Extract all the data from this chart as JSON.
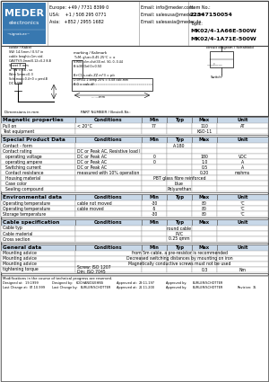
{
  "bg_color": "#ffffff",
  "header": {
    "company": "MEDER",
    "subtitle": "electronics",
    "contact_europe": "Europe: +49 / 7731 8399 0",
    "contact_usa": "USA:    +1 / 508 295 0771",
    "contact_asia": "Asia:   +852 / 2955 1682",
    "email_info": "Email: info@meder.com",
    "email_salesusa": "Email: salesusa@meder.com",
    "email_salesasia": "Email: salesasia@meder.de",
    "item_no_label": "Item No.:",
    "item_no": "22347150054",
    "topic_label": "Topic:",
    "topic_line1": "MK02/4-1A66E-500W",
    "topic_line2": "MK02/4-1A71E-500W"
  },
  "table_header_bg": "#c8d8e8",
  "sections": [
    {
      "title": "Magnetic properties",
      "rows": [
        [
          "Pull on",
          "< 20°C",
          "77",
          "",
          "110",
          "AT"
        ],
        [
          "Test equipment",
          "",
          "",
          "",
          "KSO-11",
          ""
        ]
      ]
    },
    {
      "title": "Special Product Data",
      "rows": [
        [
          "Contact - form",
          "",
          "",
          "A-180",
          "",
          ""
        ],
        [
          "Contact rating",
          "DC or Peak AC, Resistive load l",
          "",
          "",
          "",
          ""
        ],
        [
          "  operating voltage",
          "DC or Peak AC",
          "0",
          "",
          "180",
          "VDC"
        ],
        [
          "  operating ampere",
          "DC or Peak AC",
          "0",
          "",
          "1.0",
          "A"
        ],
        [
          "  Switching current",
          "DC or Peak AC",
          "",
          "",
          "0.5",
          "A"
        ],
        [
          "  Contact resistance",
          "measured with 10% operation",
          "",
          "",
          "0.20",
          "mohms"
        ],
        [
          "  Housing material",
          "",
          "",
          "PBT glass fibre reinforced",
          "",
          ""
        ],
        [
          "  Case color",
          "",
          "",
          "blue",
          "",
          ""
        ],
        [
          "  Sealing compound",
          "",
          "",
          "Polyurethan",
          "",
          ""
        ]
      ]
    },
    {
      "title": "Environmental data",
      "rows": [
        [
          "Operating temperature",
          "cable not moved",
          "-30",
          "",
          "80",
          "°C"
        ],
        [
          "Operating temperature",
          "cable moved",
          "-5",
          "",
          "80",
          "°C"
        ],
        [
          "Storage temperature",
          "",
          "-30",
          "",
          "80",
          "°C"
        ]
      ]
    },
    {
      "title": "Cable specification",
      "rows": [
        [
          "Cable typ",
          "",
          "",
          "round cable",
          "",
          ""
        ],
        [
          "Cable material",
          "",
          "",
          "PVC",
          "",
          ""
        ],
        [
          "Cross section",
          "",
          "",
          "0.25 qmm",
          "",
          ""
        ]
      ]
    },
    {
      "title": "General data",
      "rows": [
        [
          "Mounting advice",
          "",
          "",
          "from 5m cable, a pre-resistor is recommended",
          "",
          ""
        ],
        [
          "Mounting advice",
          "",
          "",
          "Decreased switching distances by mounting on iron",
          "",
          ""
        ],
        [
          "Mounting advice",
          "",
          "",
          "Magnetically conductive screws must not be used",
          "",
          ""
        ],
        [
          "tightening torque",
          "Screw: ISO 1207\nDin: ISO 7045",
          "",
          "",
          "0.3",
          "Nm"
        ]
      ]
    }
  ],
  "footer_line": "Modifications in the course of technical progress are reserved.",
  "footer_rows": [
    [
      "Designed at:",
      "1.9.1999",
      "Designed by:",
      "KOCHAN/DUEHNS",
      "Approved at:",
      "29.11.197",
      "Approved by:",
      "BURLER/SCHOTTER"
    ],
    [
      "Last Change at:",
      "07.10.999",
      "Last Change by:",
      "BURLER/SCHOTTER",
      "Approved at:",
      "21.11.200",
      "Approved by:",
      "BURLER/SCHOTTER",
      "Revision:",
      "35"
    ]
  ]
}
